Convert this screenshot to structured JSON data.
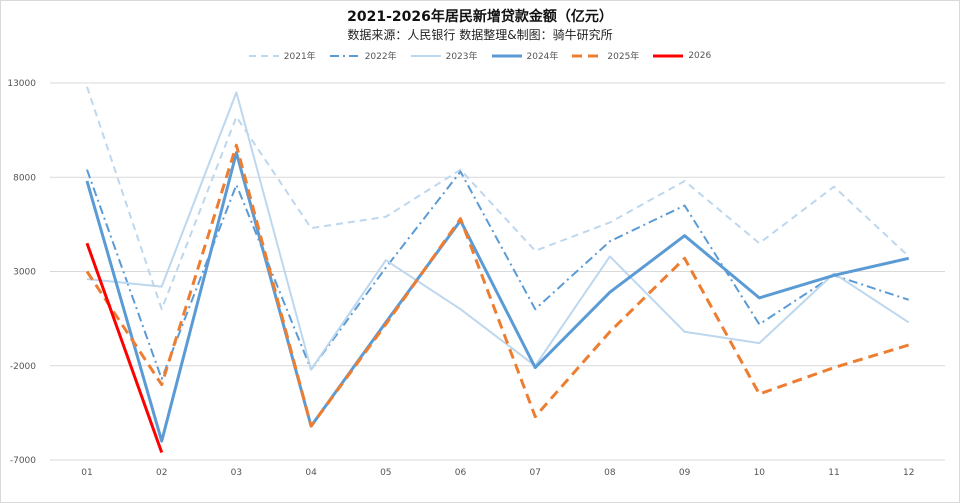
{
  "chart_data": {
    "type": "line",
    "title": "2021-2026年居民新增贷款金额（亿元）",
    "subtitle": "数据来源：人民银行  数据整理&制图：骑牛研究所",
    "categories": [
      "01",
      "02",
      "03",
      "04",
      "05",
      "06",
      "07",
      "08",
      "09",
      "10",
      "11",
      "12"
    ],
    "ylim": [
      -7000,
      13000
    ],
    "yticks": [
      13000,
      8000,
      3000,
      -2000,
      -7000
    ],
    "ytick_labels": [
      "13000",
      "8000",
      "3000",
      "-2000",
      "-7000"
    ],
    "grid": "horizontal",
    "legend_position": "top-center",
    "series": [
      {
        "name": "2021年",
        "color": "#bdd7ee",
        "dash": "7,5",
        "width": 2,
        "values": [
          12800,
          1000,
          11200,
          5300,
          5900,
          8400,
          4100,
          5600,
          7800,
          4500,
          7500,
          3800
        ]
      },
      {
        "name": "2022年",
        "color": "#5b9bd5",
        "dash": "9,4,2,4",
        "width": 2,
        "values": [
          8400,
          -2700,
          7600,
          -2200,
          3200,
          8300,
          1000,
          4600,
          6500,
          200,
          2800,
          1500
        ]
      },
      {
        "name": "2023年",
        "color": "#bdd7ee",
        "dash": "",
        "width": 2,
        "values": [
          2600,
          2200,
          12500,
          -2200,
          3600,
          1000,
          -2000,
          3800,
          -200,
          -800,
          2900,
          300
        ]
      },
      {
        "name": "2024年",
        "color": "#5b9bd5",
        "dash": "",
        "width": 3,
        "values": [
          7800,
          -6000,
          9300,
          -5200,
          300,
          5700,
          -2100,
          1900,
          4900,
          1600,
          2800,
          3700
        ]
      },
      {
        "name": "2025年",
        "color": "#ed7d31",
        "dash": "10,6",
        "width": 3,
        "values": [
          3000,
          -3000,
          9700,
          -5200,
          200,
          5800,
          -4700,
          -200,
          3700,
          -3500,
          -2100,
          -900
        ]
      },
      {
        "name": "2026",
        "color": "#ff0000",
        "dash": "",
        "width": 3,
        "values": [
          4500,
          -6600,
          null,
          null,
          null,
          null,
          null,
          null,
          null,
          null,
          null,
          null
        ]
      }
    ]
  }
}
